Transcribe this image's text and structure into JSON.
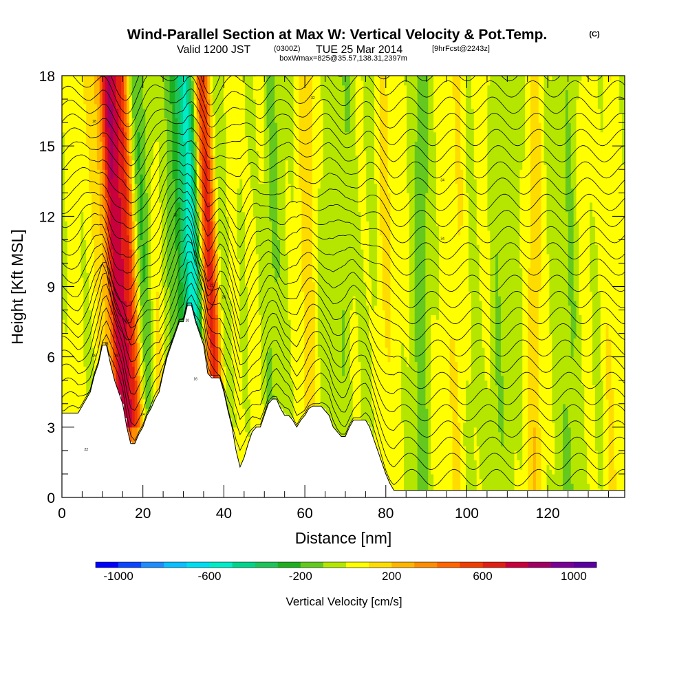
{
  "title": {
    "main": "Wind-Parallel Section at Max W: Vertical Velocity & Pot.Temp.",
    "copyright": "(C)",
    "valid_prefix": "Valid 1200 JST",
    "valid_utc": "(0300Z)",
    "valid_date": "TUE 25 Mar 2014",
    "forecast": "[9hrFcst@2243z]",
    "box_info": "boxWmax=825@35.57,138.31,2397m"
  },
  "chart_data": {
    "type": "heatmap",
    "xlabel": "Distance [nm]",
    "ylabel": "Height [Kft MSL]",
    "xlim": [
      0,
      139
    ],
    "ylim": [
      0,
      18
    ],
    "x_ticks": [
      0,
      20,
      40,
      60,
      80,
      100,
      120
    ],
    "x_tick_labels": [
      "0",
      "20",
      "40",
      "60",
      "80",
      "100",
      "120"
    ],
    "y_ticks": [
      0,
      3,
      6,
      9,
      12,
      15,
      18
    ],
    "y_tick_labels": [
      "0",
      "3",
      "6",
      "9",
      "12",
      "15",
      "18"
    ],
    "terrain": {
      "x": [
        0,
        4,
        5,
        6,
        7,
        8,
        9,
        10,
        11,
        12,
        13,
        14,
        15,
        16,
        17,
        18,
        19,
        20,
        21,
        22,
        23,
        24,
        25,
        26,
        27,
        28,
        29,
        30,
        31,
        32,
        33,
        34,
        35,
        36,
        37,
        38,
        39,
        40,
        41,
        42,
        43,
        44,
        45,
        46,
        47,
        48,
        49,
        50,
        51,
        52,
        53,
        54,
        55,
        56,
        57,
        58,
        59,
        60,
        61,
        62,
        63,
        64,
        65,
        66,
        67,
        68,
        69,
        70,
        71,
        72,
        73,
        74,
        75,
        76,
        77,
        78,
        79,
        80,
        81,
        82,
        83,
        84,
        85,
        86,
        139
      ],
      "y": [
        3.6,
        3.6,
        3.9,
        4.2,
        4.5,
        5.2,
        5.7,
        6.5,
        6.5,
        5.7,
        5.0,
        4.5,
        4.0,
        3.0,
        2.3,
        2.3,
        2.7,
        3.0,
        3.5,
        3.8,
        4.2,
        4.5,
        5.3,
        6.0,
        6.5,
        7.0,
        7.5,
        7.5,
        8.2,
        8.2,
        7.5,
        7.0,
        6.5,
        5.3,
        5.1,
        5.1,
        5.1,
        4.5,
        3.7,
        3.0,
        2.0,
        1.3,
        1.7,
        2.3,
        2.8,
        3.0,
        3.0,
        3.5,
        4.0,
        4.2,
        4.2,
        3.8,
        3.5,
        3.5,
        3.3,
        3.0,
        3.3,
        3.5,
        3.8,
        3.9,
        3.9,
        3.9,
        3.7,
        3.5,
        3.0,
        2.8,
        2.6,
        2.6,
        3.0,
        3.3,
        3.3,
        3.3,
        3.3,
        3.0,
        2.5,
        2.0,
        1.5,
        1.0,
        0.6,
        0.3,
        0.3,
        0.3,
        0.3,
        0.3,
        0.3
      ]
    },
    "vertical_velocity_features": [
      {
        "x": 14.5,
        "width": 4.2,
        "w_max": 825
      },
      {
        "x": 36.5,
        "width": 2.8,
        "w_max": 700
      },
      {
        "x": 33.0,
        "width": 2.8,
        "w_max": -600
      },
      {
        "x": 20.0,
        "width": 2.6,
        "w_max": -250
      },
      {
        "x": 40.0,
        "width": 2.2,
        "w_max": -220
      },
      {
        "x": 27.5,
        "width": 2.5,
        "w_max": -180
      },
      {
        "x": 11.5,
        "width": 1.2,
        "w_max": -160
      },
      {
        "x": 17.5,
        "width": 1.5,
        "w_max": 120
      }
    ],
    "contour_labels": [
      {
        "x": 13.5,
        "y": 6.0,
        "text": "26"
      },
      {
        "x": 8,
        "y": 6.0,
        "text": "16"
      },
      {
        "x": 11,
        "y": 6.5,
        "text": "18"
      },
      {
        "x": 16,
        "y": 7.5,
        "text": "20"
      },
      {
        "x": 6,
        "y": 2.0,
        "text": "22"
      },
      {
        "x": 33,
        "y": 5.0,
        "text": "16"
      },
      {
        "x": 31,
        "y": 7.5,
        "text": "20"
      },
      {
        "x": 37,
        "y": 9.0,
        "text": "22"
      },
      {
        "x": 20,
        "y": 3.5,
        "text": "24"
      },
      {
        "x": 40,
        "y": 8.5,
        "text": "26"
      },
      {
        "x": 8,
        "y": 16.0,
        "text": "28"
      },
      {
        "x": 28,
        "y": 12.0,
        "text": "30"
      },
      {
        "x": 62,
        "y": 17.0,
        "text": "32"
      },
      {
        "x": 94,
        "y": 13.5,
        "text": "34"
      },
      {
        "x": 94,
        "y": 11.0,
        "text": "34"
      }
    ],
    "colorbar": {
      "levels": [
        -1000,
        -900,
        -800,
        -700,
        -600,
        -500,
        -400,
        -300,
        -200,
        -100,
        0,
        100,
        200,
        300,
        400,
        500,
        600,
        700,
        800,
        900,
        1000
      ],
      "colors": [
        "#0000ff",
        "#0a46ff",
        "#1e8cff",
        "#0abeff",
        "#00dcf0",
        "#00ebc8",
        "#00d48c",
        "#1ec35a",
        "#1eaf1e",
        "#64c81e",
        "#b4e600",
        "#ffff00",
        "#ffdc00",
        "#ffb400",
        "#ff8c00",
        "#ff6400",
        "#f03c00",
        "#e01e14",
        "#c8003c",
        "#a00064",
        "#780096",
        "#5a00a0"
      ],
      "tick_values": [
        -1000,
        -600,
        -200,
        200,
        600,
        1000
      ],
      "tick_labels": [
        "-1000",
        "-600",
        "-200",
        "200",
        "600",
        "1000"
      ],
      "title": "Vertical Velocity [cm/s]"
    }
  }
}
